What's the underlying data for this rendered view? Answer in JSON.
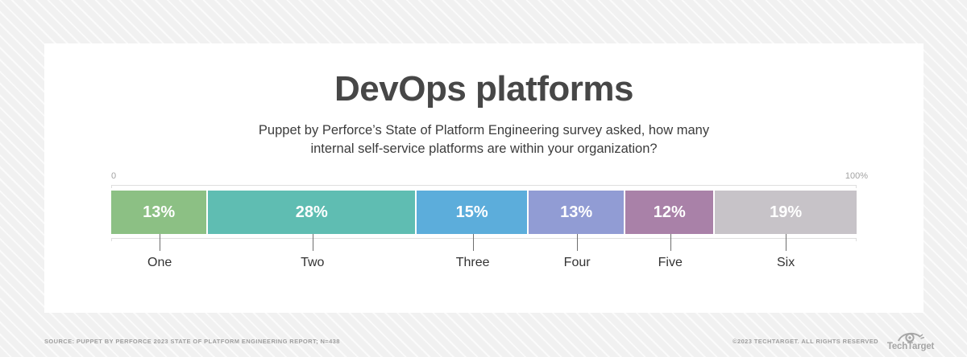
{
  "page": {
    "title": "DevOps platforms",
    "subtitle_lines": [
      "Puppet by Perforce’s State of Platform Engineering survey asked, how many",
      "internal self-service platforms are within your organization?"
    ]
  },
  "chart_data": {
    "type": "bar",
    "variant": "horizontal-stacked-100percent",
    "title": "DevOps platforms",
    "subtitle": "Puppet by Perforce’s State of Platform Engineering survey asked, how many internal self-service platforms are within your organization?",
    "categories": [
      "One",
      "Two",
      "Three",
      "Four",
      "Five",
      "Six"
    ],
    "values": [
      13,
      28,
      15,
      13,
      12,
      19
    ],
    "value_labels": [
      "13%",
      "28%",
      "15%",
      "13%",
      "12%",
      "19%"
    ],
    "colors": [
      "#8cc084",
      "#5fbdb2",
      "#5caddb",
      "#919cd4",
      "#a981a8",
      "#c7c3c8"
    ],
    "axis": {
      "min_label": "0",
      "max_label": "100%",
      "xlim": [
        0,
        100
      ]
    },
    "legend": "none",
    "grid": "off"
  },
  "footer": {
    "source": "SOURCE: PUPPET BY PERFORCE 2023 STATE OF PLATFORM ENGINEERING REPORT; N=438",
    "copyright": "©2023 TECHTARGET. ALL RIGHTS RESERVED",
    "logo_text": "TechTarget"
  }
}
